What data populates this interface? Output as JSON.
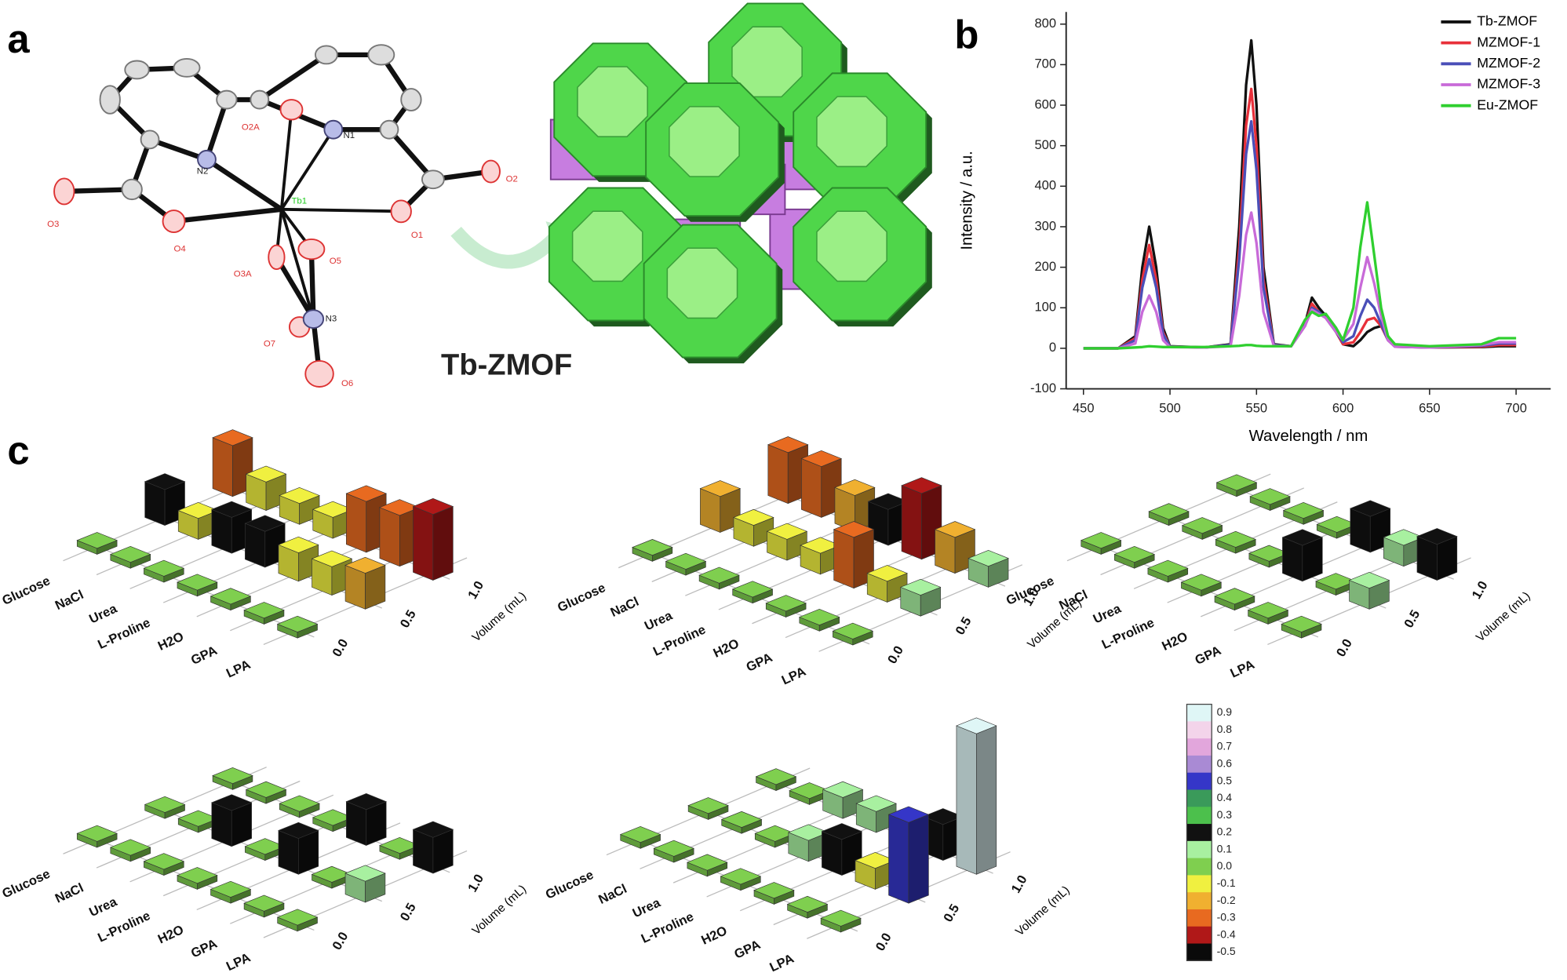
{
  "panel_a": {
    "label": "a",
    "atoms": [
      "O2A",
      "N2",
      "N1",
      "Tb1",
      "O2",
      "O3",
      "O4",
      "O1",
      "O3A",
      "O5",
      "N3",
      "O7",
      "O6"
    ],
    "caption": "Tb-ZMOF"
  },
  "panel_b": {
    "label": "b"
  },
  "panel_c": {
    "label": "c"
  },
  "chart_data": [
    {
      "type": "line",
      "x": [
        450,
        470,
        480,
        484,
        488,
        492,
        496,
        500,
        520,
        535,
        540,
        544,
        547,
        550,
        554,
        560,
        570,
        578,
        582,
        586,
        590,
        596,
        600,
        606,
        610,
        614,
        618,
        622,
        626,
        630,
        650,
        680,
        690,
        700
      ],
      "series": [
        {
          "name": "Tb-ZMOF",
          "color": "#111111",
          "values": [
            0,
            0,
            30,
            200,
            300,
            200,
            50,
            5,
            2,
            10,
            300,
            650,
            760,
            600,
            200,
            10,
            5,
            60,
            125,
            100,
            80,
            40,
            10,
            5,
            20,
            40,
            50,
            55,
            30,
            5,
            2,
            3,
            5,
            5
          ]
        },
        {
          "name": "MZMOF-1",
          "color": "#e8303a",
          "values": [
            0,
            0,
            25,
            170,
            255,
            170,
            40,
            4,
            2,
            8,
            250,
            550,
            640,
            500,
            170,
            8,
            5,
            55,
            110,
            90,
            75,
            40,
            10,
            15,
            40,
            70,
            75,
            55,
            20,
            4,
            2,
            4,
            8,
            8
          ]
        },
        {
          "name": "MZMOF-2",
          "color": "#4a4fb8",
          "values": [
            0,
            0,
            20,
            150,
            220,
            150,
            35,
            4,
            2,
            8,
            220,
            480,
            560,
            440,
            150,
            8,
            5,
            55,
            100,
            90,
            75,
            40,
            15,
            30,
            80,
            120,
            100,
            60,
            20,
            4,
            2,
            6,
            12,
            12
          ]
        },
        {
          "name": "MZMOF-3",
          "color": "#c86ad8",
          "values": [
            0,
            0,
            12,
            90,
            130,
            90,
            20,
            3,
            2,
            5,
            130,
            280,
            335,
            260,
            90,
            6,
            5,
            55,
            95,
            85,
            75,
            40,
            20,
            60,
            150,
            225,
            160,
            80,
            20,
            4,
            2,
            8,
            15,
            15
          ]
        },
        {
          "name": "Eu-ZMOF",
          "color": "#2fcf2f",
          "values": [
            0,
            0,
            2,
            3,
            5,
            4,
            3,
            3,
            3,
            5,
            6,
            8,
            8,
            6,
            5,
            5,
            5,
            70,
            90,
            80,
            85,
            50,
            20,
            100,
            250,
            360,
            230,
            100,
            30,
            10,
            5,
            10,
            25,
            25
          ]
        }
      ],
      "xlim": [
        440,
        720
      ],
      "xticks": [
        450,
        500,
        550,
        600,
        650,
        700
      ],
      "ylim": [
        -100,
        830
      ],
      "yticks": [
        -100,
        0,
        100,
        200,
        300,
        400,
        500,
        600,
        700,
        800
      ],
      "xlabel": "Wavelength / nm",
      "ylabel": "Intensity / a.u.",
      "legend": "upper right"
    },
    {
      "type": "bar3d",
      "categories": [
        "Glucose",
        "NaCl",
        "Urea",
        "L-Proline",
        "H2O",
        "GPA",
        "LPA"
      ],
      "vticks": [
        {
          "value": 0,
          "label": "0.0"
        },
        0.5,
        {
          "value": 1,
          "label": "1.0"
        }
      ],
      "vlabel": "Volume (mL)",
      "values": [
        [
          0,
          0,
          0,
          0,
          0,
          0,
          0
        ],
        [
          0.2,
          -0.1,
          0.2,
          0.2,
          -0.15,
          -0.15,
          -0.2
        ],
        [
          -0.3,
          -0.15,
          -0.1,
          -0.1,
          -0.3,
          -0.3,
          -0.4
        ]
      ]
    },
    {
      "type": "bar3d",
      "categories": [
        "Glucose",
        "NaCl",
        "Urea",
        "L-Proline",
        "H2O",
        "GPA",
        "LPA"
      ],
      "vticks": [
        {
          "value": 0,
          "label": "0.0"
        },
        0.5,
        {
          "value": 1,
          "label": "1.0"
        }
      ],
      "vlabel": "Volume (mL)",
      "values": [
        [
          0,
          0,
          0,
          0,
          0,
          0,
          0
        ],
        [
          -0.2,
          -0.1,
          -0.1,
          -0.1,
          -0.3,
          -0.1,
          0.1
        ],
        [
          -0.3,
          -0.3,
          -0.2,
          0.2,
          -0.4,
          -0.2,
          0.1
        ]
      ]
    },
    {
      "type": "bar3d",
      "categories": [
        "Glucose",
        "NaCl",
        "Urea",
        "L-Proline",
        "H2O",
        "GPA",
        "LPA"
      ],
      "vticks": [
        {
          "value": 0,
          "label": "0.0"
        },
        0.5,
        {
          "value": 1,
          "label": "1.0"
        }
      ],
      "vlabel": "Volume (mL)",
      "values": [
        [
          0,
          0,
          0,
          0,
          0,
          0,
          0
        ],
        [
          0,
          0,
          0,
          0,
          0.2,
          0,
          0.1
        ],
        [
          0,
          0,
          0,
          0,
          0.2,
          0.1,
          0.2
        ]
      ]
    },
    {
      "type": "bar3d",
      "categories": [
        "Glucose",
        "NaCl",
        "Urea",
        "L-Proline",
        "H2O",
        "GPA",
        "LPA"
      ],
      "vticks": [
        {
          "value": 0,
          "label": "0.0"
        },
        0.5,
        {
          "value": 1,
          "label": "1.0"
        }
      ],
      "vlabel": "Volume (mL)",
      "values": [
        [
          0,
          0,
          0,
          0,
          0,
          0,
          0
        ],
        [
          0,
          0,
          0.2,
          0,
          0.2,
          0,
          0.1
        ],
        [
          0,
          0,
          0,
          0,
          0.2,
          0,
          0.2
        ]
      ]
    },
    {
      "type": "bar3d",
      "categories": [
        "Glucose",
        "NaCl",
        "Urea",
        "L-Proline",
        "H2O",
        "GPA",
        "LPA"
      ],
      "vticks": [
        {
          "value": 0,
          "label": "0.0"
        },
        0.5,
        {
          "value": 1,
          "label": "1.0"
        }
      ],
      "vlabel": "Volume (mL)",
      "values": [
        [
          0,
          0,
          0,
          0,
          0,
          0,
          0
        ],
        [
          0,
          0,
          0,
          0.1,
          0.2,
          -0.1,
          0.5
        ],
        [
          0,
          0,
          0.1,
          0.1,
          -0.1,
          0.2,
          0.9
        ]
      ]
    }
  ],
  "colorbar": {
    "ticks": [
      0.9,
      0.8,
      0.7,
      0.6,
      0.5,
      0.4,
      0.3,
      0.2,
      0.1,
      {
        "value": 0,
        "label": "0.0"
      },
      -0.1,
      -0.2,
      -0.3,
      -0.4,
      -0.5
    ],
    "colors": [
      "#dff6f6",
      "#f3d4ea",
      "#e2a6dc",
      "#a98ad4",
      "#3536c8",
      "#3a9a5a",
      "#4cc04c",
      "#111111",
      "#a8f0a0",
      "#7fcf4f",
      "#f0f040",
      "#f0b030",
      "#e86a20",
      "#b01818",
      "#0a0a0a"
    ]
  }
}
